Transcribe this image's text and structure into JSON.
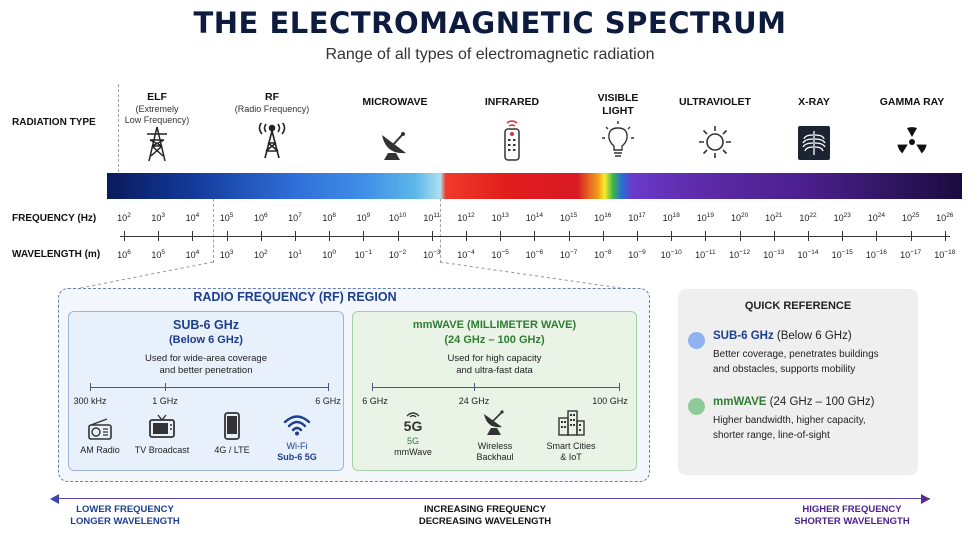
{
  "title": "THE ELECTROMAGNETIC SPECTRUM",
  "subtitle": "Range of all types of electromagnetic radiation",
  "row_labels": {
    "radiation_type": "RADIATION TYPE",
    "frequency": "FREQUENCY (Hz)",
    "wavelength": "WAVELENGTH (m)"
  },
  "radiation_types": [
    {
      "name": "ELF",
      "sub1": "(Extremely",
      "sub2": "Low Frequency)",
      "icon": "power-tower-icon"
    },
    {
      "name": "RF",
      "sub1": "(Radio Frequency)",
      "sub2": "",
      "icon": "radio-tower-icon"
    },
    {
      "name": "MICROWAVE",
      "icon": "satellite-dish-icon"
    },
    {
      "name": "INFRARED",
      "icon": "remote-control-icon"
    },
    {
      "name1": "VISIBLE",
      "name2": "LIGHT",
      "icon": "light-bulb-icon"
    },
    {
      "name": "ULTRAVIOLET",
      "icon": "sun-icon"
    },
    {
      "name": "X-RAY",
      "icon": "xray-chest-icon"
    },
    {
      "name": "GAMMA RAY",
      "icon": "radiation-icon"
    }
  ],
  "frequency_exponents": [
    "2",
    "3",
    "4",
    "5",
    "6",
    "7",
    "8",
    "9",
    "10",
    "11",
    "12",
    "13",
    "14",
    "15",
    "16",
    "17",
    "18",
    "19",
    "20",
    "21",
    "22",
    "23",
    "24",
    "25",
    "26"
  ],
  "wavelength_exponents": [
    "6",
    "5",
    "4",
    "3",
    "2",
    "1",
    "0",
    "−1",
    "−2",
    "−3",
    "−4",
    "−5",
    "−6",
    "−7",
    "−8",
    "−9",
    "−10",
    "−11",
    "−12",
    "−13",
    "−14",
    "−15",
    "−16",
    "−17",
    "−18"
  ],
  "rf_region": {
    "title": "RADIO FREQUENCY (RF) REGION",
    "sub6": {
      "heading": "SUB-6 GHz",
      "subheading": "(Below 6 GHz)",
      "desc1": "Used for wide-area coverage",
      "desc2": "and better penetration",
      "axis_labels": [
        "300 kHz",
        "1 GHz",
        "6 GHz"
      ],
      "apps": [
        {
          "label": "AM Radio",
          "icon": "radio-icon"
        },
        {
          "label": "TV Broadcast",
          "icon": "tv-icon"
        },
        {
          "label": "4G / LTE",
          "icon": "phone-icon"
        },
        {
          "label1": "Wi-Fi",
          "label2": "Sub-6 5G",
          "icon": "wifi-icon"
        }
      ]
    },
    "mmwave": {
      "heading": "mmWAVE (MILLIMETER WAVE)",
      "subheading": "(24 GHz – 100 GHz)",
      "desc1": "Used for high capacity",
      "desc2": "and ultra-fast data",
      "axis_labels": [
        "6 GHz",
        "24 GHz",
        "100 GHz"
      ],
      "apps": [
        {
          "label1": "5G",
          "label2": "mmWave",
          "icon": "5g-icon",
          "icon_text": "5G"
        },
        {
          "label1": "Wireless",
          "label2": "Backhaul",
          "icon": "dish-icon"
        },
        {
          "label1": "Smart Cities",
          "label2": "& IoT",
          "icon": "buildings-icon"
        }
      ]
    }
  },
  "quick_reference": {
    "title": "QUICK REFERENCE",
    "items": [
      {
        "head": "SUB-6 GHz",
        "head_rest": " (Below 6 GHz)",
        "line1": "Better coverage, penetrates buildings",
        "line2": "and obstacles, supports mobility",
        "color": "#8fb3ef"
      },
      {
        "head": "mmWAVE",
        "head_rest": " (24 GHz – 100 GHz)",
        "line1": "Higher bandwidth, higher capacity,",
        "line2": "shorter range, line-of-sight",
        "color": "#8ec99a"
      }
    ]
  },
  "bottom": {
    "left1": "LOWER FREQUENCY",
    "left2": "LONGER WAVELENGTH",
    "center1": "INCREASING FREQUENCY",
    "center2": "DECREASING WAVELENGTH",
    "right1": "HIGHER FREQUENCY",
    "right2": "SHORTER WAVELENGTH"
  }
}
